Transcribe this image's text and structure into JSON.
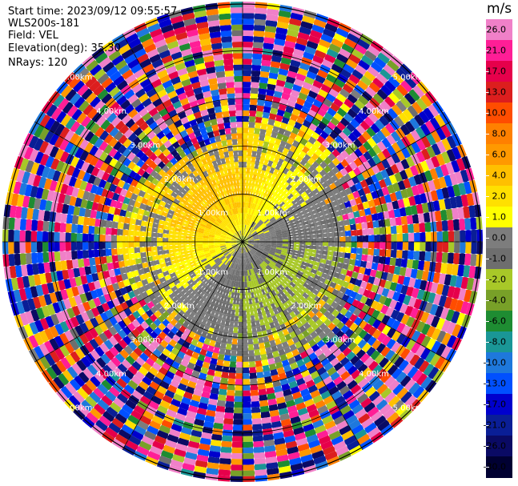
{
  "header": {
    "start_time": "Start time: 2023/09/12 09:55:57",
    "site": "WLS200s-181",
    "field": "Field: VEL",
    "elevation": "Elevation(deg): 35.30",
    "nrays": "NRays: 120"
  },
  "colorbar": {
    "units": "m/s",
    "labels": [
      "26.0",
      "21.0",
      "17.0",
      "13.0",
      "10.0",
      "8.0",
      "6.0",
      "4.0",
      "2.0",
      "1.0",
      "0.0",
      "-1.0",
      "-2.0",
      "-4.0",
      "-6.0",
      "-8.0",
      "-10.0",
      "-13.0",
      "-17.0",
      "-21.0",
      "-26.0",
      "-30.0"
    ],
    "colors": [
      "#f080c8",
      "#ff1e96",
      "#e6004b",
      "#dc1e1e",
      "#ff4d00",
      "#ff8000",
      "#ff9900",
      "#ffc000",
      "#ffe000",
      "#ffff00",
      "#7d7d7d",
      "#6e6e6e",
      "#a8c828",
      "#78a028",
      "#1e8c32",
      "#1a9696",
      "#1e78dc",
      "#0050ff",
      "#0000cd",
      "#0a1e96",
      "#0a0a64",
      "#000032"
    ]
  },
  "chart_data": {
    "type": "ppi",
    "field": "VEL",
    "units": "m/s",
    "nrays": 120,
    "elevation_deg": 35.3,
    "range_ring_labels": [
      "1.00km",
      "2.00km",
      "3.00km",
      "4.00km",
      "5.00km"
    ],
    "range_rings_km": [
      1,
      2,
      3,
      4,
      5
    ],
    "max_range_km": 5.0,
    "velocity_levels": [
      26.0,
      21.0,
      17.0,
      13.0,
      10.0,
      8.0,
      6.0,
      4.0,
      2.0,
      1.0,
      0.0,
      -1.0,
      -2.0,
      -4.0,
      -6.0,
      -8.0,
      -10.0,
      -13.0,
      -17.0,
      -21.0,
      -26.0,
      -30.0
    ],
    "structure": "near-range velocities between -4 and 2 m/s (yellow positive lobe to the west/north, green negative lobe to the east/south), noisy random velocities beyond about 2.5 km"
  }
}
